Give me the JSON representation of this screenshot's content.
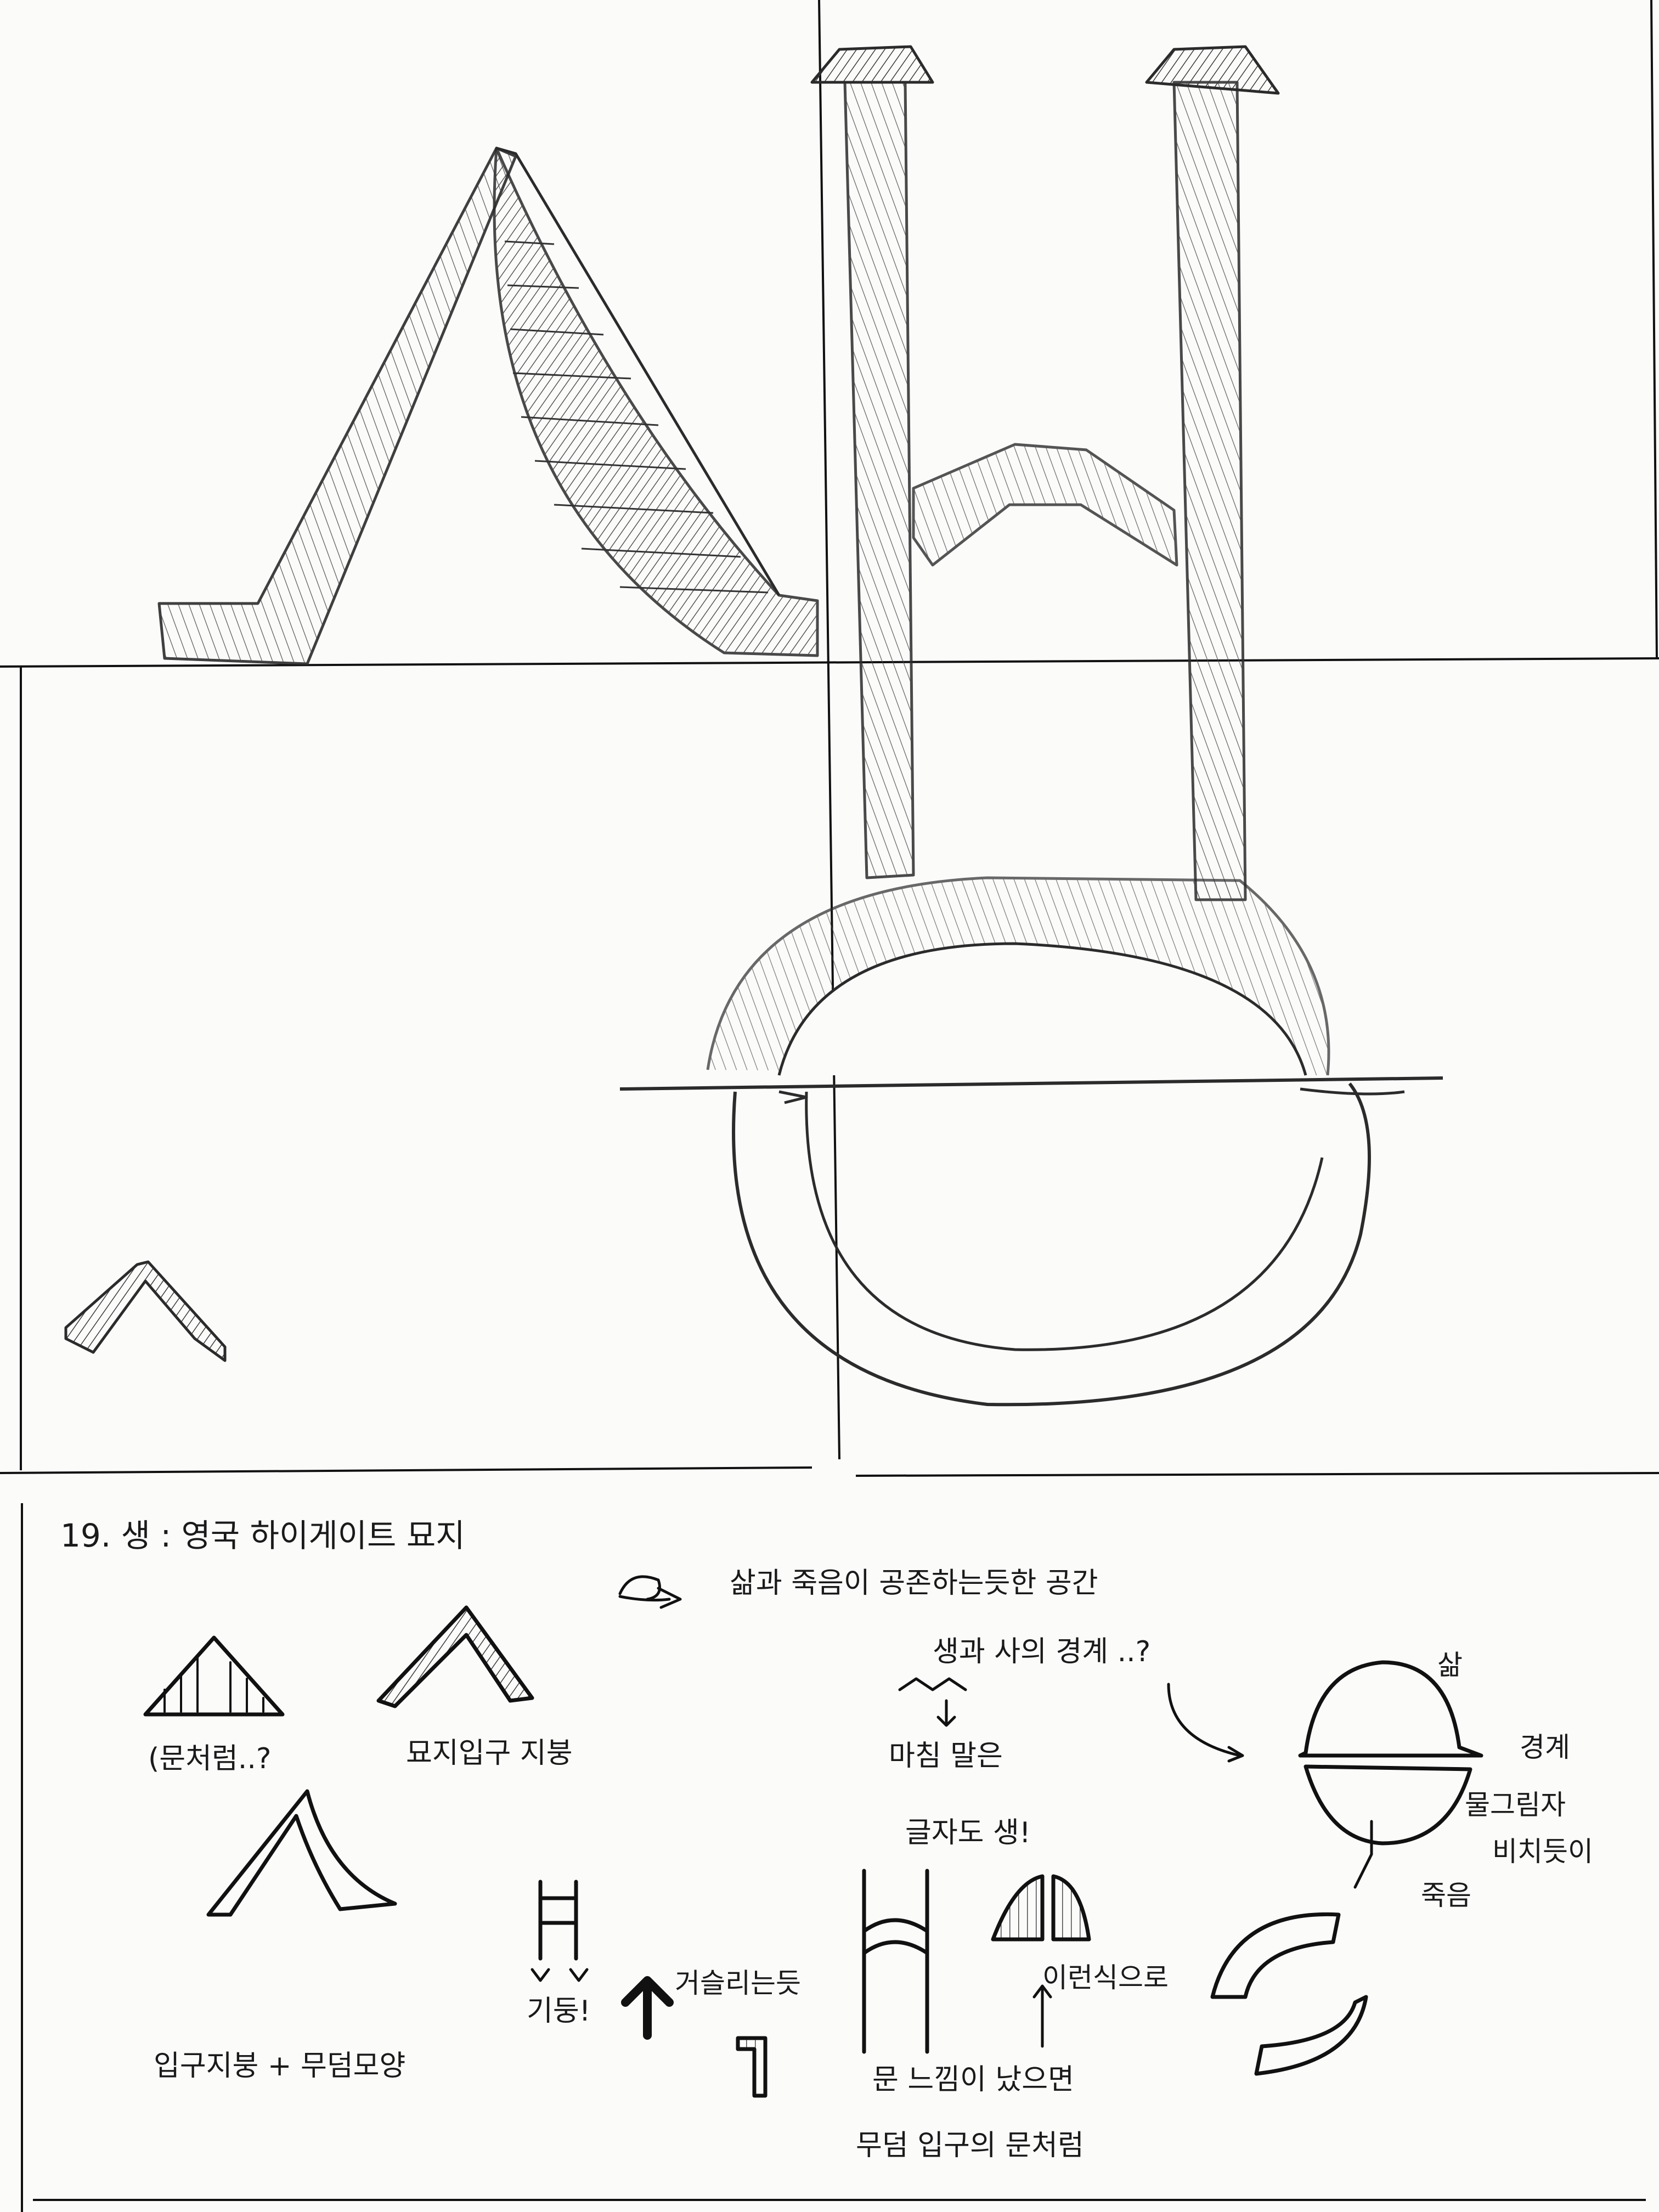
{
  "page": {
    "title": "19. 생 : 영국 하이게이트 묘지"
  },
  "notes": {
    "concept": "삶과 죽음이 공존하는듯한 공간",
    "boundary_question": "생과 사의 경계 ..?",
    "like_door": "(문처럼..?",
    "cemetery_roof": "묘지입구 지붕",
    "letter_line1": "마침 말은",
    "letter_line2": "글자도 생!",
    "life": "삶",
    "boundary": "경계",
    "reflection_line1": "물그림자",
    "reflection_line2": "비치듯이",
    "death": "죽음",
    "pillar": "기둥!",
    "hanging": "거슬리는듯",
    "this_way": "이런식으로",
    "entrance_roof_plus_tomb": "입구지붕 + 무덤모양",
    "door_feeling": "문 느낌이 났으면",
    "like_tomb_door": "무덤 입구의 문처럼"
  },
  "colors": {
    "paper": "#fbfbfa",
    "ink": "#161616",
    "pencil": "#2b2b2b"
  }
}
